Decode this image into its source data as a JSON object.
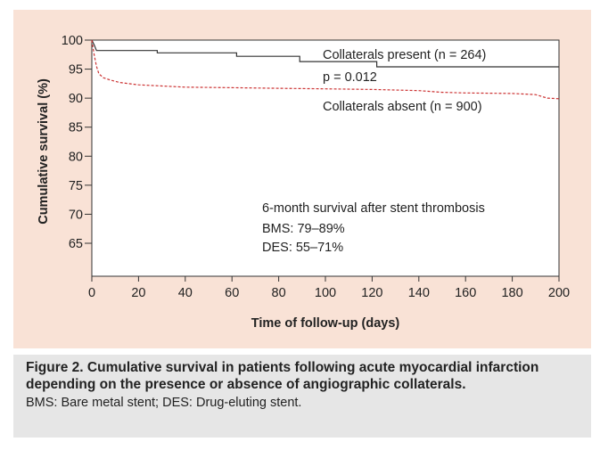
{
  "chart_data": {
    "type": "line",
    "title": "",
    "xlabel": "Time of follow-up (days)",
    "ylabel": "Cumulative survival (%)",
    "xlim": [
      0,
      200
    ],
    "ylim": [
      60,
      100
    ],
    "xticks": [
      0,
      20,
      40,
      60,
      80,
      100,
      120,
      140,
      160,
      180,
      200
    ],
    "yticks": [
      65,
      70,
      75,
      80,
      85,
      90,
      95,
      100
    ],
    "grid": false,
    "series": [
      {
        "name": "Collaterals present (n = 264)",
        "style": "solid",
        "color": "#333333",
        "x": [
          0,
          1,
          2,
          28,
          28,
          62,
          62,
          89,
          89,
          122,
          122,
          200
        ],
        "y": [
          100,
          99.2,
          98.2,
          98.2,
          97.8,
          97.8,
          97.2,
          97.2,
          96.3,
          96.3,
          95.4,
          95.4
        ]
      },
      {
        "name": "Collaterals absent (n = 900)",
        "style": "dashed",
        "color": "#cc3333",
        "x": [
          0,
          1,
          2,
          3,
          5,
          8,
          12,
          20,
          30,
          40,
          60,
          80,
          100,
          120,
          140,
          150,
          160,
          180,
          190,
          195,
          200
        ],
        "y": [
          100,
          97.5,
          95.5,
          94.2,
          93.5,
          93.1,
          92.7,
          92.3,
          92.1,
          91.9,
          91.8,
          91.7,
          91.6,
          91.5,
          91.3,
          91.0,
          90.9,
          90.8,
          90.6,
          90.0,
          89.9
        ]
      }
    ],
    "annotations": {
      "p_value": "p = 0.012",
      "box_title": "6-month survival after stent thrombosis",
      "bms": "BMS: 79–89%",
      "des": "DES: 55–71%"
    }
  },
  "caption": {
    "title": "Figure 2. Cumulative survival in patients following acute myocardial infarction depending on the presence or absence of angiographic collaterals.",
    "note": "BMS: Bare metal stent; DES: Drug-eluting stent."
  }
}
